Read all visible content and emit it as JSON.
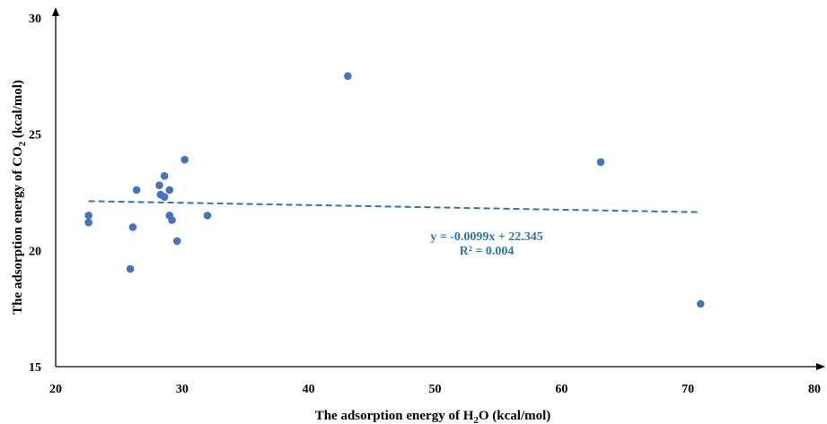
{
  "chart_data": {
    "type": "scatter",
    "xlabel": {
      "pre": "The adsorption energy of H",
      "sub": "2",
      "post": "O (kcal/mol)"
    },
    "ylabel": {
      "pre": "The adsorption energy of CO",
      "sub": "2",
      "post": " (kcal/mol)"
    },
    "xlim": [
      20,
      80
    ],
    "ylim": [
      15,
      30
    ],
    "xticks": [
      "20",
      "30",
      "40",
      "50",
      "60",
      "70",
      "80"
    ],
    "yticks": [
      "15",
      "20",
      "25",
      "30"
    ],
    "grid": false,
    "marker_color": "#4472C4",
    "trend_color": "#2E75B6",
    "points": [
      {
        "x": 22.6,
        "y": 21.5
      },
      {
        "x": 22.6,
        "y": 21.2
      },
      {
        "x": 25.9,
        "y": 19.2
      },
      {
        "x": 26.1,
        "y": 21.0
      },
      {
        "x": 26.4,
        "y": 22.6
      },
      {
        "x": 28.2,
        "y": 22.8
      },
      {
        "x": 28.3,
        "y": 22.4
      },
      {
        "x": 28.6,
        "y": 23.2
      },
      {
        "x": 28.6,
        "y": 22.3
      },
      {
        "x": 29.0,
        "y": 22.6
      },
      {
        "x": 29.0,
        "y": 21.5
      },
      {
        "x": 29.2,
        "y": 21.3
      },
      {
        "x": 29.6,
        "y": 20.4
      },
      {
        "x": 30.2,
        "y": 23.9
      },
      {
        "x": 32.0,
        "y": 21.5
      },
      {
        "x": 43.1,
        "y": 27.5
      },
      {
        "x": 63.1,
        "y": 23.8
      },
      {
        "x": 71.0,
        "y": 17.7
      }
    ],
    "trendline": {
      "slope": -0.0099,
      "intercept": 22.345,
      "x_range": [
        22.6,
        71.0
      ],
      "equation": "y = -0.0099x + 22.345",
      "r2": "R² = 0.004"
    }
  }
}
